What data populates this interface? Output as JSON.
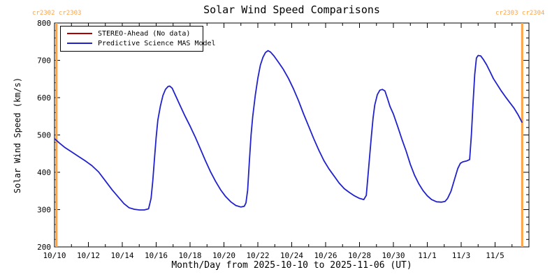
{
  "annotations": {
    "top_left": "cr2302 cr2303",
    "top_right": "cr2303 cr2304"
  },
  "colors": {
    "carrington_line": "#ffa342",
    "stereo_red": "#b00000",
    "mas_blue": "#2121cc",
    "axis_black": "#000000",
    "background": "#ffffff"
  },
  "chart_data": {
    "type": "line",
    "title": "Solar Wind Speed Comparisons",
    "xlabel": "Month/Day from 2025-10-10 to 2025-11-06 (UT)",
    "ylabel": "Solar Wind Speed (km/s)",
    "ylim": [
      200,
      800
    ],
    "x_range_days": [
      0,
      28
    ],
    "x_start_date": "2025-10-10",
    "grid": false,
    "legend_position": "top-left",
    "y_ticks": [
      200,
      300,
      400,
      500,
      600,
      700,
      800
    ],
    "y_minor_step": 20,
    "x_tick_days": [
      0,
      2,
      4,
      6,
      8,
      10,
      12,
      14,
      16,
      18,
      20,
      22,
      24,
      26
    ],
    "x_tick_labels": [
      "10/10",
      "10/12",
      "10/14",
      "10/16",
      "10/18",
      "10/20",
      "10/22",
      "10/24",
      "10/26",
      "10/28",
      "10/30",
      "11/1",
      "11/3",
      "11/5"
    ],
    "x_minor_step_days": 1,
    "carrington_boundaries": [
      {
        "day": 0.12,
        "left_label": "cr2302",
        "right_label": "cr2303",
        "color": "#ffa342"
      },
      {
        "day": 27.6,
        "left_label": "cr2303",
        "right_label": "cr2304",
        "color": "#ffa342"
      }
    ],
    "series": [
      {
        "name": "STEREO-Ahead (No data)",
        "color": "#b00000",
        "points": []
      },
      {
        "name": "Predictive Science MAS Model",
        "color": "#2121cc",
        "points": [
          [
            0.0,
            490
          ],
          [
            0.3,
            478
          ],
          [
            0.6,
            467
          ],
          [
            1.0,
            455
          ],
          [
            1.4,
            443
          ],
          [
            1.8,
            431
          ],
          [
            2.2,
            418
          ],
          [
            2.6,
            401
          ],
          [
            3.0,
            377
          ],
          [
            3.4,
            353
          ],
          [
            3.8,
            332
          ],
          [
            4.1,
            316
          ],
          [
            4.4,
            305
          ],
          [
            4.7,
            301
          ],
          [
            5.0,
            299
          ],
          [
            5.3,
            299
          ],
          [
            5.55,
            302
          ],
          [
            5.7,
            330
          ],
          [
            5.8,
            378
          ],
          [
            5.9,
            437
          ],
          [
            6.0,
            494
          ],
          [
            6.1,
            540
          ],
          [
            6.25,
            578
          ],
          [
            6.4,
            606
          ],
          [
            6.55,
            622
          ],
          [
            6.7,
            630
          ],
          [
            6.8,
            631
          ],
          [
            6.95,
            625
          ],
          [
            7.1,
            610
          ],
          [
            7.4,
            580
          ],
          [
            7.7,
            551
          ],
          [
            8.0,
            524
          ],
          [
            8.3,
            495
          ],
          [
            8.6,
            464
          ],
          [
            8.9,
            432
          ],
          [
            9.2,
            402
          ],
          [
            9.5,
            376
          ],
          [
            9.8,
            353
          ],
          [
            10.1,
            335
          ],
          [
            10.4,
            321
          ],
          [
            10.7,
            311
          ],
          [
            11.0,
            307
          ],
          [
            11.2,
            309
          ],
          [
            11.3,
            318
          ],
          [
            11.4,
            352
          ],
          [
            11.5,
            430
          ],
          [
            11.6,
            500
          ],
          [
            11.7,
            550
          ],
          [
            11.85,
            607
          ],
          [
            12.0,
            652
          ],
          [
            12.15,
            687
          ],
          [
            12.3,
            708
          ],
          [
            12.45,
            721
          ],
          [
            12.6,
            726
          ],
          [
            12.75,
            722
          ],
          [
            12.95,
            712
          ],
          [
            13.2,
            696
          ],
          [
            13.5,
            676
          ],
          [
            13.8,
            652
          ],
          [
            14.1,
            624
          ],
          [
            14.4,
            592
          ],
          [
            14.7,
            556
          ],
          [
            15.0,
            523
          ],
          [
            15.3,
            490
          ],
          [
            15.6,
            459
          ],
          [
            15.9,
            431
          ],
          [
            16.2,
            409
          ],
          [
            16.5,
            390
          ],
          [
            16.8,
            371
          ],
          [
            17.1,
            356
          ],
          [
            17.4,
            346
          ],
          [
            17.7,
            337
          ],
          [
            18.0,
            330
          ],
          [
            18.25,
            327
          ],
          [
            18.4,
            338
          ],
          [
            18.5,
            390
          ],
          [
            18.6,
            445
          ],
          [
            18.7,
            497
          ],
          [
            18.8,
            545
          ],
          [
            18.9,
            580
          ],
          [
            19.05,
            608
          ],
          [
            19.2,
            620
          ],
          [
            19.35,
            622
          ],
          [
            19.5,
            618
          ],
          [
            19.65,
            598
          ],
          [
            19.8,
            576
          ],
          [
            20.0,
            556
          ],
          [
            20.25,
            523
          ],
          [
            20.5,
            489
          ],
          [
            20.75,
            457
          ],
          [
            21.0,
            421
          ],
          [
            21.25,
            392
          ],
          [
            21.5,
            369
          ],
          [
            21.75,
            351
          ],
          [
            22.0,
            337
          ],
          [
            22.25,
            327
          ],
          [
            22.55,
            321
          ],
          [
            22.85,
            320
          ],
          [
            23.05,
            322
          ],
          [
            23.2,
            330
          ],
          [
            23.4,
            349
          ],
          [
            23.6,
            380
          ],
          [
            23.8,
            410
          ],
          [
            23.95,
            424
          ],
          [
            24.1,
            428
          ],
          [
            24.3,
            430
          ],
          [
            24.5,
            434
          ],
          [
            24.6,
            500
          ],
          [
            24.7,
            585
          ],
          [
            24.8,
            662
          ],
          [
            24.9,
            706
          ],
          [
            25.0,
            713
          ],
          [
            25.15,
            712
          ],
          [
            25.3,
            703
          ],
          [
            25.5,
            688
          ],
          [
            25.7,
            670
          ],
          [
            25.9,
            651
          ],
          [
            26.1,
            637
          ],
          [
            26.35,
            619
          ],
          [
            26.6,
            603
          ],
          [
            26.85,
            588
          ],
          [
            27.1,
            573
          ],
          [
            27.35,
            555
          ],
          [
            27.6,
            533
          ]
        ]
      }
    ]
  }
}
